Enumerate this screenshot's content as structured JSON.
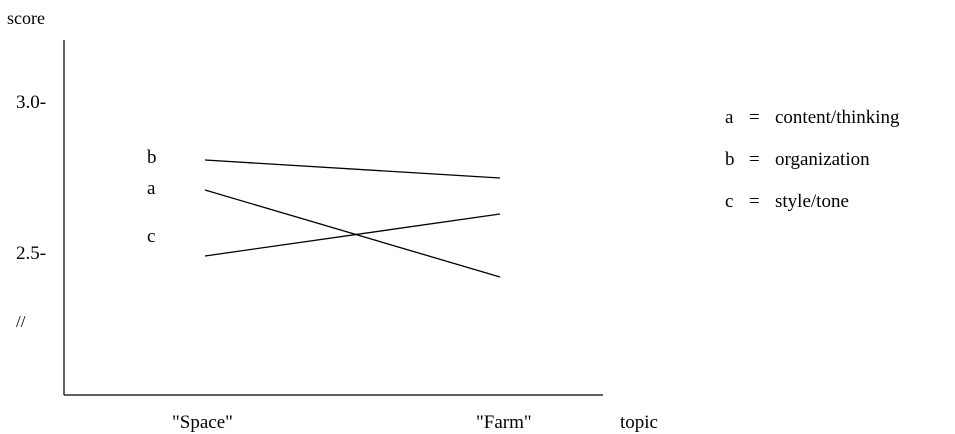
{
  "chart_data": {
    "type": "line",
    "title": "",
    "xlabel": "topic",
    "ylabel": "score",
    "categories": [
      "\"Space\"",
      "\"Farm\""
    ],
    "yticks": [
      "3.0-",
      "2.5-"
    ],
    "ytick_values": [
      3.0,
      2.5
    ],
    "axis_break_mark": "//",
    "ylim": [
      2.0,
      3.2
    ],
    "grid": false,
    "legend_position": "right",
    "series": [
      {
        "key": "b",
        "name": "organization",
        "values": [
          2.81,
          2.75
        ]
      },
      {
        "key": "a",
        "name": "content/thinking",
        "values": [
          2.71,
          2.42
        ]
      },
      {
        "key": "c",
        "name": "style/tone",
        "values": [
          2.49,
          2.63
        ]
      }
    ],
    "legend": [
      {
        "key": "a",
        "sep": "=",
        "label": "content/thinking"
      },
      {
        "key": "b",
        "sep": "=",
        "label": "organization"
      },
      {
        "key": "c",
        "sep": "=",
        "label": "style/tone"
      }
    ]
  }
}
